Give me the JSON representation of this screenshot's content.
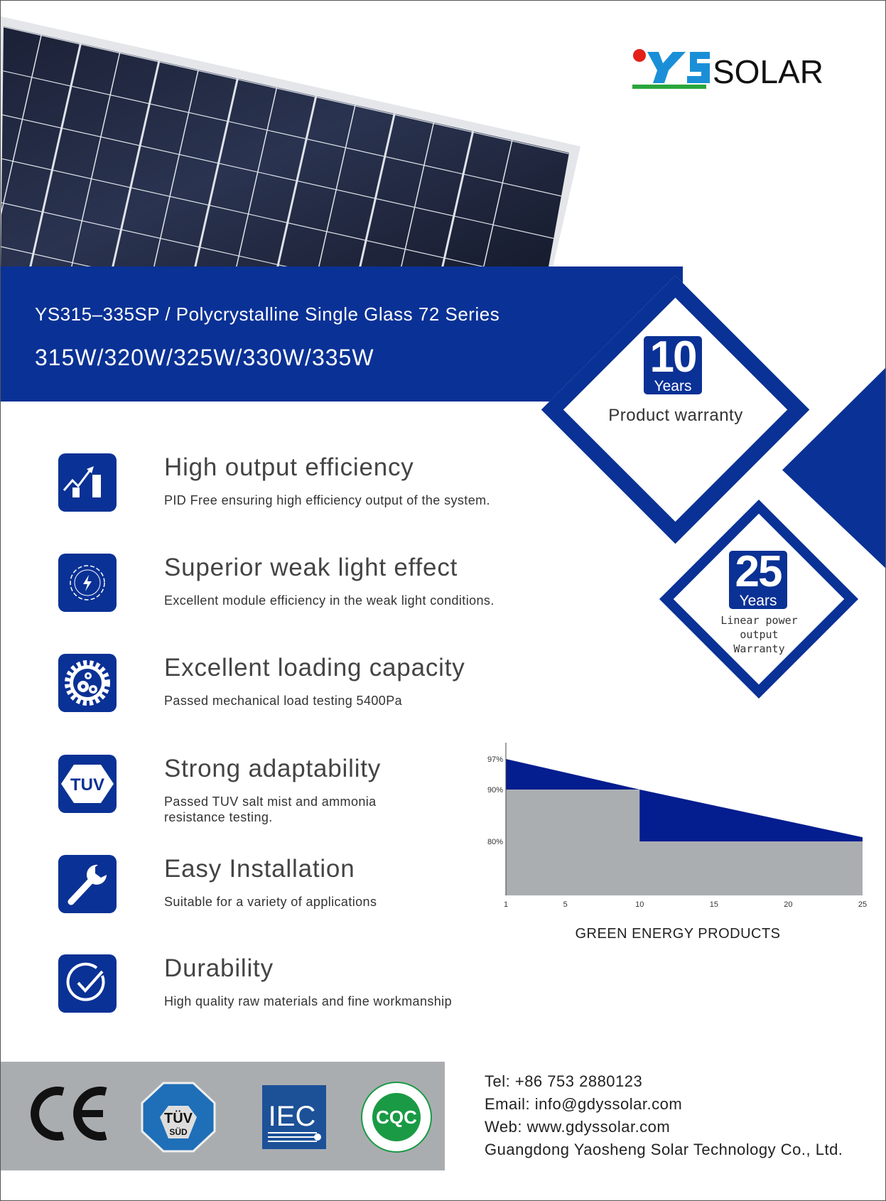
{
  "brand": {
    "name": "SOLAR",
    "mark": "YS",
    "colors": {
      "blue": "#1a8fd8",
      "red": "#e32119",
      "green": "#2aa63c"
    }
  },
  "banner": {
    "title": "YS315–335SP / Polycrystalline Single Glass 72 Series",
    "power": "315W/320W/325W/330W/335W"
  },
  "warranty": {
    "product": {
      "number": "10",
      "unit": "Years",
      "label": "Product warranty"
    },
    "linear": {
      "number": "25",
      "unit": "Years",
      "lines": [
        "Linear power",
        "output",
        "Warranty"
      ]
    }
  },
  "features": [
    {
      "icon": "chart-growth-icon",
      "title": "High output efficiency",
      "desc": "PID Free ensuring high efficiency output of the system."
    },
    {
      "icon": "lightning-icon",
      "title": "Superior weak light effect",
      "desc": "Excellent module efficiency in the weak light conditions."
    },
    {
      "icon": "gears-icon",
      "title": "Excellent loading capacity",
      "desc": "Passed mechanical load testing 5400Pa"
    },
    {
      "icon": "tuv-icon",
      "icon_text": "TUV",
      "title": "Strong adaptability",
      "desc": "Passed TUV salt mist and ammonia resistance testing."
    },
    {
      "icon": "wrench-icon",
      "title": "Easy Installation",
      "desc": "Suitable for a variety of applications"
    },
    {
      "icon": "check-circle-icon",
      "title": "Durability",
      "desc": "High quality raw materials and fine workmanship"
    }
  ],
  "chart_data": {
    "type": "area",
    "caption": "GREEN ENERGY PRODUCTS",
    "x_ticks": [
      "1",
      "5",
      "10",
      "15",
      "20",
      "25"
    ],
    "y_ticks": [
      "97%",
      "90%",
      "80%"
    ],
    "xlim": [
      1,
      25
    ],
    "series": [
      {
        "kind": "linear",
        "x": [
          1,
          10,
          25
        ],
        "y": [
          97,
          90,
          80.8
        ],
        "color": "#041d8f"
      },
      {
        "kind": "step",
        "x": [
          1,
          10,
          10,
          25
        ],
        "y": [
          90,
          90,
          80,
          80
        ],
        "color": "#abaeb1"
      }
    ],
    "grid": false
  },
  "certifications": [
    {
      "icon": "ce-mark-icon",
      "text": "CE"
    },
    {
      "icon": "tuv-sud-icon",
      "text": "TÜV SÜD"
    },
    {
      "icon": "iec-icon",
      "text": "IEC"
    },
    {
      "icon": "cqc-icon",
      "text": "CQC"
    }
  ],
  "contact": {
    "tel": "Tel: +86 753 2880123",
    "email": "Email: info@gdyssolar.com",
    "web": "Web: www.gdyssolar.com",
    "company": "Guangdong Yaosheng Solar Technology Co., Ltd."
  }
}
